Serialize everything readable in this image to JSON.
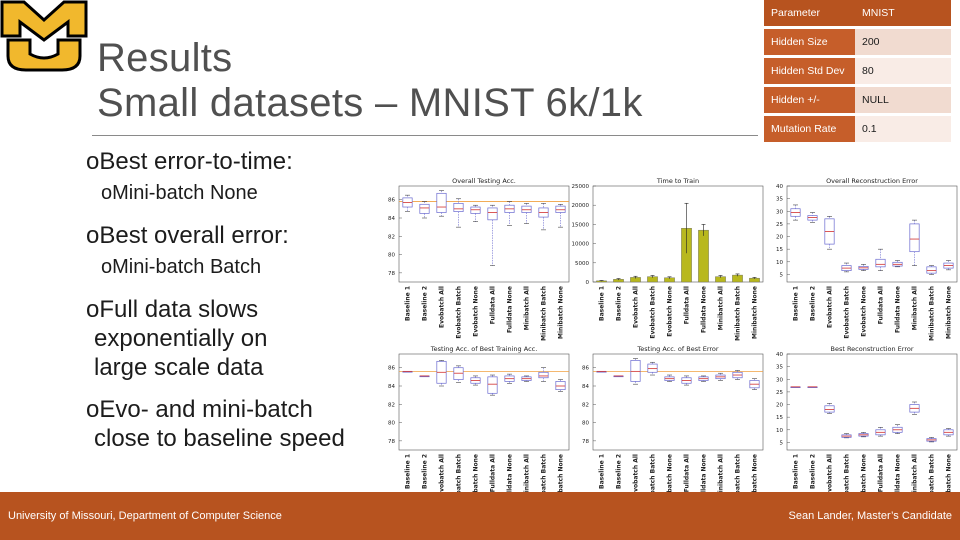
{
  "title": {
    "line1": "Results",
    "line2": "Small datasets – MNIST 6k/1k"
  },
  "bullets": [
    {
      "text": "Best error-to-time:"
    },
    {
      "text": "Mini-batch None"
    },
    {
      "text": "Best overall error:"
    },
    {
      "text": "Mini-batch Batch"
    },
    {
      "text": "Full data slows"
    },
    {
      "text": "exponentially on"
    },
    {
      "text": "large scale data"
    },
    {
      "text": "Evo- and mini-batch"
    },
    {
      "text": "close to baseline speed"
    }
  ],
  "params_table": {
    "header": {
      "key": "Parameter",
      "value": "MNIST"
    },
    "rows": [
      {
        "key": "Hidden Size",
        "value": "200"
      },
      {
        "key": "Hidden Std Dev",
        "value": "80"
      },
      {
        "key": "Hidden +/-",
        "value": "NULL"
      },
      {
        "key": "Mutation Rate",
        "value": "0.1"
      }
    ]
  },
  "footer": {
    "left": "University of Missouri, Department of Computer Science",
    "right": "Sean Lander, Master’s Candidate"
  },
  "colors": {
    "accent": "#b7531f",
    "logo_gold": "#f1b82d",
    "logo_black": "#000000",
    "bar": "#b8b81e",
    "ref_line": "#f0a040",
    "box": "#6a6ad0"
  },
  "chart_data": [
    {
      "type": "boxplot",
      "title": "Overall Testing Acc.",
      "categories": [
        "Baseline 1",
        "Baseline 2",
        "Evobatch All",
        "Evobatch Batch",
        "Evobatch None",
        "Fulldata All",
        "Fulldata None",
        "Minibatch All",
        "Minibatch Batch",
        "Minibatch None"
      ],
      "yticks": [
        78,
        80,
        82,
        84,
        86
      ],
      "ylim": [
        77,
        87.5
      ],
      "reference": 85.8,
      "boxes": [
        {
          "q1": 85.2,
          "median": 85.7,
          "q3": 86.2,
          "min": 84.7,
          "max": 86.5
        },
        {
          "q1": 84.5,
          "median": 85.1,
          "q3": 85.5,
          "min": 84.0,
          "max": 85.8
        },
        {
          "q1": 84.6,
          "median": 85.2,
          "q3": 86.7,
          "min": 84.2,
          "max": 87.0
        },
        {
          "q1": 84.7,
          "median": 85.0,
          "q3": 85.6,
          "min": 83.0,
          "max": 86.1
        },
        {
          "q1": 84.5,
          "median": 84.9,
          "q3": 85.2,
          "min": 83.6,
          "max": 85.4
        },
        {
          "q1": 83.8,
          "median": 84.6,
          "q3": 85.1,
          "min": 78.8,
          "max": 85.4
        },
        {
          "q1": 84.6,
          "median": 85.0,
          "q3": 85.4,
          "min": 83.2,
          "max": 85.8
        },
        {
          "q1": 84.6,
          "median": 84.9,
          "q3": 85.3,
          "min": 83.4,
          "max": 85.6
        },
        {
          "q1": 84.1,
          "median": 84.6,
          "q3": 85.1,
          "min": 82.7,
          "max": 85.6
        },
        {
          "q1": 84.6,
          "median": 84.9,
          "q3": 85.3,
          "min": 83.0,
          "max": 85.5
        }
      ]
    },
    {
      "type": "bar",
      "title": "Time to Train",
      "categories": [
        "Baseline 1",
        "Baseline 2",
        "Evobatch All",
        "Evobatch Batch",
        "Evobatch None",
        "Fulldata All",
        "Fulldata None",
        "Minibatch All",
        "Minibatch Batch",
        "Minibatch None"
      ],
      "yticks": [
        0,
        5000,
        10000,
        15000,
        20000,
        25000
      ],
      "ylim": [
        0,
        25000
      ],
      "values": [
        300,
        700,
        1200,
        1400,
        1100,
        14000,
        13500,
        1400,
        1800,
        1000
      ],
      "err": [
        100,
        200,
        300,
        300,
        250,
        6500,
        1500,
        300,
        300,
        200
      ]
    },
    {
      "type": "boxplot",
      "title": "Overall Reconstruction Error",
      "categories": [
        "Baseline 1",
        "Baseline 2",
        "Evobatch All",
        "Evobatch Batch",
        "Evobatch None",
        "Fulldata All",
        "Fulldata None",
        "Minibatch All",
        "Minibatch Batch",
        "Minibatch None"
      ],
      "yticks": [
        5,
        10,
        15,
        20,
        25,
        30,
        35,
        40
      ],
      "ylim": [
        2,
        40
      ],
      "boxes": [
        {
          "q1": 28.0,
          "median": 29.5,
          "q3": 31.0,
          "min": 26.5,
          "max": 32.5
        },
        {
          "q1": 26.5,
          "median": 27.5,
          "q3": 28.3,
          "min": 25.5,
          "max": 29.5
        },
        {
          "q1": 17.0,
          "median": 22.0,
          "q3": 27.0,
          "min": 15.0,
          "max": 28.0
        },
        {
          "q1": 6.5,
          "median": 7.5,
          "q3": 8.5,
          "min": 6.0,
          "max": 9.5
        },
        {
          "q1": 7.0,
          "median": 7.6,
          "q3": 8.2,
          "min": 6.5,
          "max": 9.0
        },
        {
          "q1": 8.0,
          "median": 9.0,
          "q3": 11.0,
          "min": 6.5,
          "max": 15.0
        },
        {
          "q1": 8.3,
          "median": 9.0,
          "q3": 9.8,
          "min": 8.0,
          "max": 10.5
        },
        {
          "q1": 14.0,
          "median": 19.0,
          "q3": 25.0,
          "min": 8.5,
          "max": 26.5
        },
        {
          "q1": 5.5,
          "median": 6.5,
          "q3": 8.0,
          "min": 5.0,
          "max": 8.5
        },
        {
          "q1": 7.5,
          "median": 8.5,
          "q3": 9.5,
          "min": 6.8,
          "max": 10.5
        }
      ]
    },
    {
      "type": "boxplot",
      "title": "Testing Acc. of Best Training Acc.",
      "categories": [
        "Baseline 1",
        "Baseline 2",
        "Evobatch All",
        "Evobatch Batch",
        "Evobatch None",
        "Fulldata All",
        "Fulldata None",
        "Minibatch All",
        "Minibatch Batch",
        "Minibatch None"
      ],
      "yticks": [
        78,
        80,
        82,
        84,
        86
      ],
      "ylim": [
        77,
        87.5
      ],
      "reference": 85.6,
      "boxes": [
        {
          "q1": 85.6,
          "median": 85.6,
          "q3": 85.6,
          "min": 85.6,
          "max": 85.6
        },
        {
          "q1": 85.1,
          "median": 85.1,
          "q3": 85.1,
          "min": 85.1,
          "max": 85.1
        },
        {
          "q1": 84.3,
          "median": 85.5,
          "q3": 86.7,
          "min": 84.0,
          "max": 86.8
        },
        {
          "q1": 84.7,
          "median": 85.4,
          "q3": 86.0,
          "min": 84.4,
          "max": 86.2
        },
        {
          "q1": 84.3,
          "median": 84.6,
          "q3": 84.9,
          "min": 84.1,
          "max": 85.1
        },
        {
          "q1": 83.2,
          "median": 84.2,
          "q3": 85.0,
          "min": 83.0,
          "max": 85.2
        },
        {
          "q1": 84.5,
          "median": 84.8,
          "q3": 85.1,
          "min": 84.3,
          "max": 85.3
        },
        {
          "q1": 84.6,
          "median": 84.8,
          "q3": 85.0,
          "min": 84.5,
          "max": 85.1
        },
        {
          "q1": 84.9,
          "median": 85.1,
          "q3": 85.5,
          "min": 84.5,
          "max": 86.0
        },
        {
          "q1": 83.6,
          "median": 84.0,
          "q3": 84.5,
          "min": 83.4,
          "max": 84.7
        }
      ]
    },
    {
      "type": "boxplot",
      "title": "Testing Acc. of Best Error",
      "categories": [
        "Baseline 1",
        "Baseline 2",
        "Evobatch All",
        "Evobatch Batch",
        "Evobatch None",
        "Fulldata All",
        "Fulldata None",
        "Minibatch All",
        "Minibatch Batch",
        "Minibatch None"
      ],
      "yticks": [
        78,
        80,
        82,
        84,
        86
      ],
      "ylim": [
        77,
        87.5
      ],
      "reference": 85.6,
      "boxes": [
        {
          "q1": 85.6,
          "median": 85.6,
          "q3": 85.6,
          "min": 85.6,
          "max": 85.6
        },
        {
          "q1": 85.1,
          "median": 85.1,
          "q3": 85.1,
          "min": 85.1,
          "max": 85.1
        },
        {
          "q1": 84.5,
          "median": 85.6,
          "q3": 86.8,
          "min": 84.2,
          "max": 87.0
        },
        {
          "q1": 85.5,
          "median": 85.9,
          "q3": 86.4,
          "min": 85.2,
          "max": 86.6
        },
        {
          "q1": 84.6,
          "median": 84.8,
          "q3": 85.0,
          "min": 84.5,
          "max": 85.2
        },
        {
          "q1": 84.3,
          "median": 84.6,
          "q3": 84.9,
          "min": 84.1,
          "max": 85.1
        },
        {
          "q1": 84.6,
          "median": 84.8,
          "q3": 85.0,
          "min": 84.5,
          "max": 85.1
        },
        {
          "q1": 84.8,
          "median": 85.0,
          "q3": 85.2,
          "min": 84.6,
          "max": 85.4
        },
        {
          "q1": 84.9,
          "median": 85.2,
          "q3": 85.5,
          "min": 84.7,
          "max": 85.7
        },
        {
          "q1": 83.8,
          "median": 84.2,
          "q3": 84.6,
          "min": 83.6,
          "max": 84.8
        }
      ]
    },
    {
      "type": "boxplot",
      "title": "Best Reconstruction Error",
      "categories": [
        "Baseline 1",
        "Baseline 2",
        "Evobatch All",
        "Evobatch Batch",
        "Evobatch None",
        "Fulldata All",
        "Fulldata None",
        "Minibatch All",
        "Minibatch Batch",
        "Minibatch None"
      ],
      "yticks": [
        5,
        10,
        15,
        20,
        25,
        30,
        35,
        40
      ],
      "ylim": [
        2,
        40
      ],
      "boxes": [
        {
          "q1": 27.0,
          "median": 27.0,
          "q3": 27.0,
          "min": 27.0,
          "max": 27.0
        },
        {
          "q1": 27.0,
          "median": 27.0,
          "q3": 27.0,
          "min": 27.0,
          "max": 27.0
        },
        {
          "q1": 17.0,
          "median": 18.0,
          "q3": 19.5,
          "min": 16.5,
          "max": 20.5
        },
        {
          "q1": 7.0,
          "median": 7.5,
          "q3": 8.0,
          "min": 6.8,
          "max": 8.5
        },
        {
          "q1": 7.5,
          "median": 8.0,
          "q3": 8.5,
          "min": 7.2,
          "max": 9.0
        },
        {
          "q1": 8.0,
          "median": 9.0,
          "q3": 10.0,
          "min": 7.5,
          "max": 11.0
        },
        {
          "q1": 9.0,
          "median": 10.0,
          "q3": 11.0,
          "min": 8.5,
          "max": 12.0
        },
        {
          "q1": 17.0,
          "median": 18.5,
          "q3": 20.0,
          "min": 16.0,
          "max": 21.0
        },
        {
          "q1": 5.5,
          "median": 6.0,
          "q3": 6.5,
          "min": 5.2,
          "max": 7.0
        },
        {
          "q1": 8.0,
          "median": 9.0,
          "q3": 10.0,
          "min": 7.5,
          "max": 10.5
        }
      ]
    }
  ]
}
